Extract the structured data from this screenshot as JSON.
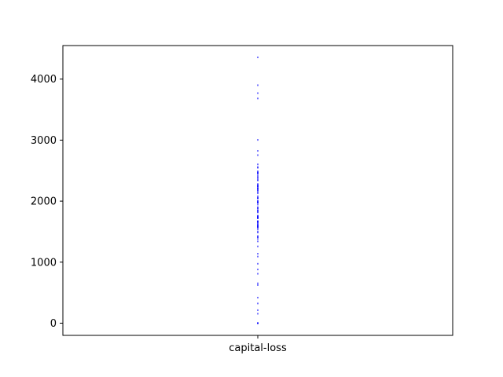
{
  "chart_data": {
    "type": "scatter",
    "title": "",
    "xlabel": "",
    "ylabel": "",
    "categories": [
      "capital-loss"
    ],
    "ylim": [
      -200,
      4550
    ],
    "yticks": [
      0,
      1000,
      2000,
      3000,
      4000
    ],
    "grid": false,
    "point_color": "#0000ff",
    "series": [
      {
        "category": "capital-loss",
        "values": [
          0,
          155,
          213,
          323,
          419,
          625,
          653,
          810,
          880,
          974,
          1092,
          1138,
          1258,
          1340,
          1380,
          1408,
          1411,
          1429,
          1485,
          1504,
          1539,
          1564,
          1573,
          1579,
          1590,
          1594,
          1602,
          1617,
          1628,
          1648,
          1651,
          1668,
          1669,
          1672,
          1719,
          1721,
          1726,
          1735,
          1740,
          1741,
          1755,
          1762,
          1816,
          1825,
          1844,
          1848,
          1876,
          1887,
          1902,
          1944,
          1974,
          1977,
          1980,
          2001,
          2002,
          2042,
          2051,
          2057,
          2080,
          2129,
          2149,
          2174,
          2179,
          2201,
          2205,
          2206,
          2231,
          2238,
          2246,
          2258,
          2267,
          2282,
          2339,
          2352,
          2377,
          2392,
          2415,
          2444,
          2457,
          2467,
          2472,
          2489,
          2547,
          2559,
          2603,
          2754,
          2824,
          3004,
          3683,
          3770,
          3900,
          4356
        ]
      }
    ]
  }
}
